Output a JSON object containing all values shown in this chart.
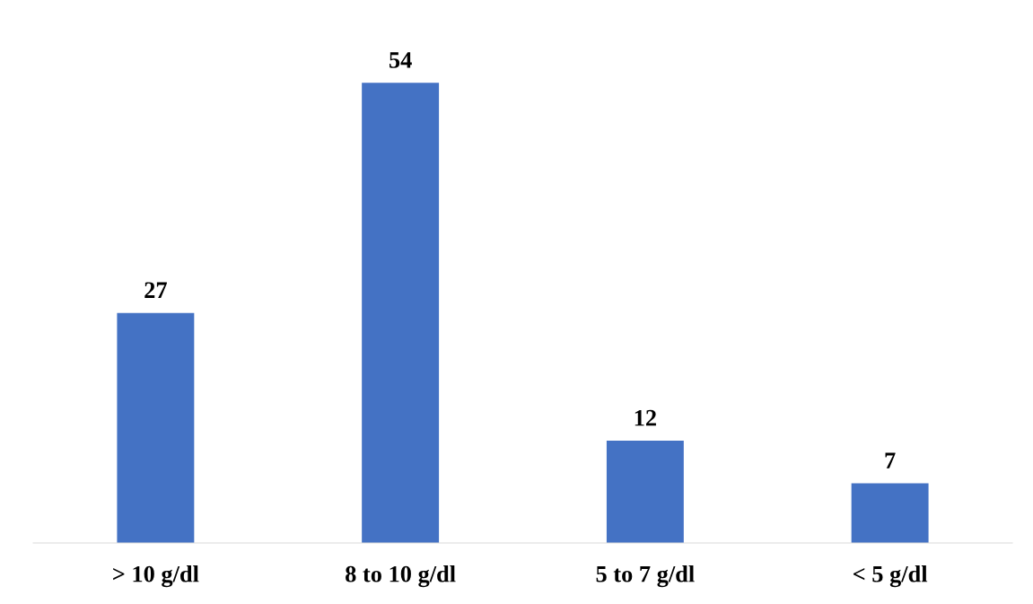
{
  "chart_data": {
    "type": "bar",
    "categories": [
      "> 10 g/dl",
      "8 to 10 g/dl",
      "5 to 7 g/dl",
      "< 5 g/dl"
    ],
    "values": [
      27,
      54,
      12,
      7
    ],
    "color": "#4472c4",
    "tick_labels": "x",
    "data_labels": true,
    "grid": false,
    "legend": false
  }
}
